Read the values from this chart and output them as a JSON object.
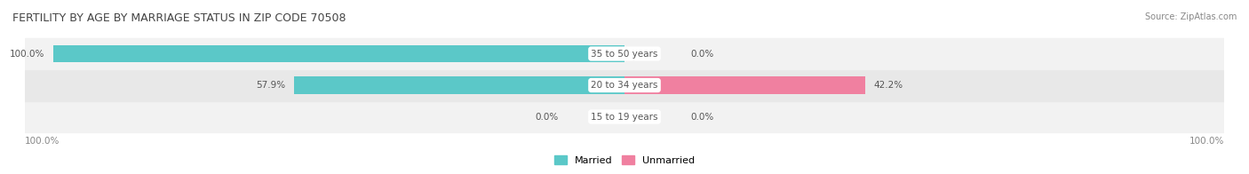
{
  "title": "FERTILITY BY AGE BY MARRIAGE STATUS IN ZIP CODE 70508",
  "source": "Source: ZipAtlas.com",
  "categories": [
    "15 to 19 years",
    "20 to 34 years",
    "35 to 50 years"
  ],
  "married_values": [
    0.0,
    57.9,
    100.0
  ],
  "unmarried_values": [
    0.0,
    42.2,
    0.0
  ],
  "married_color": "#5bc8c8",
  "unmarried_color": "#f080a0",
  "bar_bg_color": "#e8e8e8",
  "row_bg_colors": [
    "#f0f0f0",
    "#e8e8e8",
    "#f0f0f0"
  ],
  "title_fontsize": 9,
  "source_fontsize": 7,
  "label_fontsize": 7.5,
  "category_fontsize": 7.5,
  "legend_fontsize": 8,
  "axis_label_left": "100.0%",
  "axis_label_right": "100.0%",
  "bar_height": 0.55,
  "fig_bg_color": "#ffffff"
}
